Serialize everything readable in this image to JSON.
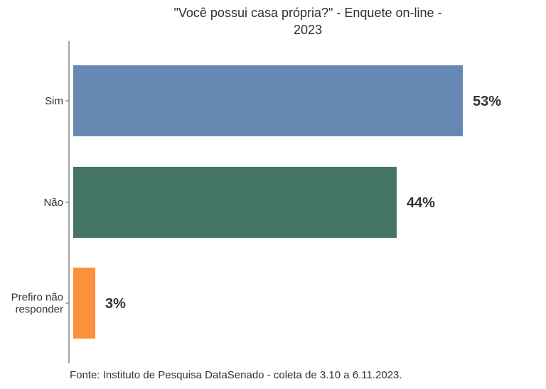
{
  "chart_data": {
    "type": "bar",
    "orientation": "horizontal",
    "title": "\"Você possui casa própria?\" - Enquete on-line - 2023",
    "categories": [
      "Sim",
      "Não",
      "Prefiro não responder"
    ],
    "category_lines": [
      [
        "Sim"
      ],
      [
        "Não"
      ],
      [
        "Prefiro não",
        "responder"
      ]
    ],
    "values": [
      53,
      44,
      3
    ],
    "value_labels": [
      "53%",
      "44%",
      "3%"
    ],
    "colors": [
      "#6689b3",
      "#447563",
      "#fc913a"
    ],
    "xlim": [
      0,
      60
    ],
    "grid": false,
    "legend": "none",
    "source": "Fonte: Instituto de Pesquisa DataSenado - coleta de 3.10 a 6.11.2023."
  }
}
